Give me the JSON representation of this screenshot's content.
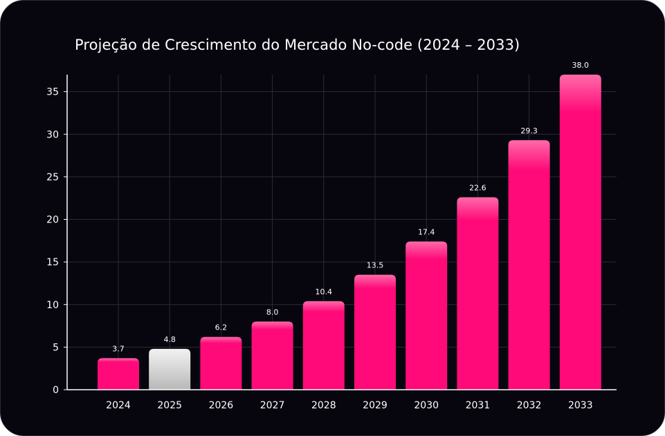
{
  "chart_data": {
    "type": "bar",
    "title": "Projeção de Crescimento do Mercado No-code (2024 – 2033)",
    "xlabel": "",
    "ylabel": "",
    "categories": [
      "2024",
      "2025",
      "2026",
      "2027",
      "2028",
      "2029",
      "2030",
      "2031",
      "2032",
      "2033"
    ],
    "values": [
      3.7,
      4.8,
      6.2,
      8.0,
      10.4,
      13.5,
      17.4,
      22.6,
      29.3,
      38.0
    ],
    "value_labels": [
      "3.7",
      "4.8",
      "6.2",
      "8.0",
      "10.4",
      "13.5",
      "17.4",
      "22.6",
      "29.3",
      "38.0"
    ],
    "yticks": [
      0,
      5,
      10,
      15,
      20,
      25,
      30,
      35
    ],
    "ylim": [
      0,
      37
    ],
    "grid": true,
    "legend": "none",
    "highlight_category": "2025",
    "colors": {
      "background": "#07060f",
      "bar": "#ff0a78",
      "bar_top": "#ff6aa9",
      "highlight_bar": "#f2f2f2",
      "highlight_bar_bottom": "#b8b8b8",
      "axis": "#ffffff",
      "grid": "#2b2b33",
      "text": "#ffffff"
    }
  }
}
